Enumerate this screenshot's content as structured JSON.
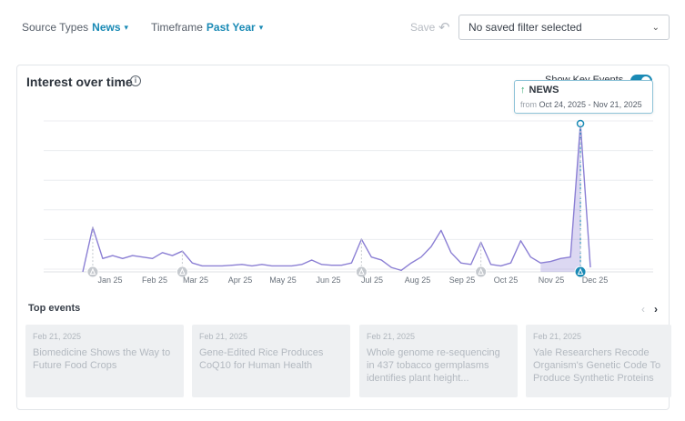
{
  "filters": {
    "source_label": "Source Types",
    "source_value": "News",
    "time_label": "Timeframe",
    "time_value": "Past Year",
    "save_label": "Save",
    "saved_filter_value": "No saved filter selected"
  },
  "card": {
    "title": "Interest over time",
    "show_key_events_label": "Show Key Events",
    "show_key_events_on": true
  },
  "tooltip": {
    "title": "NEWS",
    "from_label": "from",
    "range": "Oct 24, 2025 - Nov 21, 2025"
  },
  "chart_data": {
    "type": "line",
    "x_tick_labels": [
      "Jan 25",
      "Feb 25",
      "Mar 25",
      "Apr 25",
      "May 25",
      "Jun 25",
      "Jul 25",
      "Aug 25",
      "Sep 25",
      "Oct 25",
      "Nov 25",
      "Dec 25"
    ],
    "series": [
      {
        "values": [
          0,
          30,
          9,
          11,
          9,
          11,
          10,
          9,
          13,
          11,
          14,
          6,
          4,
          4,
          4,
          4.5,
          5,
          4,
          5,
          4,
          4,
          4,
          5,
          8,
          5,
          4.5,
          4.5,
          6,
          22,
          10,
          8,
          3,
          1,
          6,
          10,
          17,
          28,
          13,
          6,
          5,
          20,
          5,
          4,
          6,
          21,
          10,
          6,
          7,
          9,
          10,
          100,
          3
        ]
      }
    ],
    "key_event_indices": [
      1,
      10,
      28,
      40,
      50
    ],
    "highlight_range_indices": [
      46,
      50
    ],
    "ylim": [
      0,
      100
    ],
    "grid": true,
    "accent_color": "#8b7fd4",
    "highlight_color": "#1a8ab5"
  },
  "events": {
    "title": "Top events",
    "items": [
      {
        "date": "Feb 21, 2025",
        "title": "Biomedicine Shows the Way to Future Food Crops"
      },
      {
        "date": "Feb 21, 2025",
        "title": "Gene-Edited Rice Produces CoQ10 for Human Health"
      },
      {
        "date": "Feb 21, 2025",
        "title": "Whole genome re-sequencing in 437 tobacco germplasms identifies plant height..."
      },
      {
        "date": "Feb 21, 2025",
        "title": "Yale Researchers Recode Organism's Genetic Code To Produce Synthetic Proteins"
      }
    ]
  }
}
